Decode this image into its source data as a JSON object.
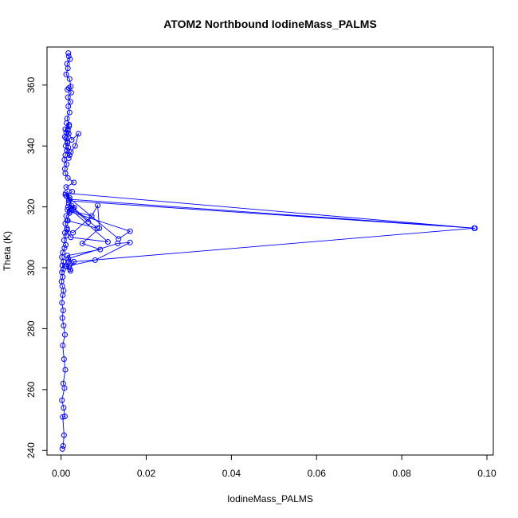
{
  "chart_data": {
    "type": "line",
    "title": "ATOM2 Northbound IodineMass_PALMS",
    "xlabel": "IodineMass_PALMS",
    "ylabel": "Theta (K)",
    "xlim": [
      -0.0033,
      0.1015
    ],
    "ylim": [
      238.5,
      372.5
    ],
    "x_ticks": [
      0.0,
      0.02,
      0.04,
      0.06,
      0.08,
      0.1
    ],
    "x_tick_labels": [
      "0.00",
      "0.02",
      "0.04",
      "0.06",
      "0.08",
      "0.10"
    ],
    "y_ticks": [
      240,
      260,
      280,
      300,
      320,
      340,
      360
    ],
    "y_tick_labels": [
      "240",
      "260",
      "280",
      "300",
      "320",
      "340",
      "360"
    ],
    "grid": false,
    "legend": "none",
    "color": "#0000ff",
    "series": [
      {
        "x": [
          0.0003,
          0.0005,
          0.0007,
          0.0004,
          0.0009,
          0.0006,
          0.0002,
          0.0008,
          0.0005,
          0.001,
          0.0007,
          0.0004,
          0.0009,
          0.0006,
          0.0003,
          0.0005,
          0.0002,
          0.0004,
          0.0006,
          0.0003,
          0.0001,
          0.0004,
          0.0002,
          0.0005,
          0.0003,
          0.0006,
          0.0002,
          0.0004,
          0.0008,
          0.0011,
          0.0007,
          0.0012,
          0.0009,
          0.0014,
          0.001,
          0.0016,
          0.0012,
          0.002,
          0.0028,
          0.0064,
          0.0086,
          0.009,
          0.005,
          0.0092,
          0.0015,
          0.0018,
          0.0011,
          0.0022,
          0.0025,
          0.0017,
          0.0133,
          0.0162,
          0.008,
          0.0013,
          0.0021,
          0.003,
          0.0972,
          0.0019,
          0.001,
          0.0135,
          0.0162,
          0.002,
          0.0016,
          0.011,
          0.0023,
          0.0014,
          0.0028,
          0.0072,
          0.0015,
          0.0031,
          0.0018,
          0.0085,
          0.0014,
          0.0024,
          0.002,
          0.0011,
          0.097,
          0.0018,
          0.0013,
          0.0026,
          0.0012,
          0.003,
          0.0016,
          0.001,
          0.0009,
          0.0013,
          0.0008,
          0.001,
          0.0014,
          0.0011,
          0.0015,
          0.0009,
          0.0012,
          0.001,
          0.0019,
          0.0013,
          0.0016,
          0.0018,
          0.0012,
          0.0015,
          0.0017,
          0.0014,
          0.002,
          0.0018,
          0.0023,
          0.0033,
          0.0041,
          0.0025,
          0.0016,
          0.0019,
          0.0014,
          0.002,
          0.0017,
          0.0022,
          0.0016,
          0.0024,
          0.0018,
          0.0015,
          0.0023,
          0.002,
          0.0012,
          0.0016,
          0.0014,
          0.0021,
          0.0018,
          0.0017
        ],
        "y": [
          240.5,
          241.5,
          245.0,
          251.0,
          251.2,
          254.0,
          256.5,
          260.5,
          262.0,
          266.5,
          270.0,
          274.5,
          278.0,
          281.0,
          283.5,
          286.0,
          288.5,
          291.0,
          292.5,
          294.0,
          295.5,
          297.0,
          298.5,
          299.5,
          300.8,
          302.0,
          303.5,
          305.0,
          306.5,
          307.5,
          309.0,
          310.5,
          311.5,
          313.0,
          314.5,
          315.5,
          317.0,
          318.0,
          319.5,
          315.0,
          320.5,
          313.0,
          308.0,
          306.0,
          304.0,
          302.0,
          300.5,
          299.0,
          301.5,
          303.0,
          308.0,
          308.3,
          302.5,
          300.5,
          299.5,
          302.0,
          313.0,
          322.5,
          324.0,
          309.5,
          312.0,
          318.5,
          320.0,
          308.5,
          310.0,
          312.5,
          311.5,
          317.0,
          319.0,
          319.8,
          321.0,
          313.0,
          315.5,
          320.5,
          323.0,
          324.5,
          313.0,
          322.0,
          323.5,
          325.0,
          326.5,
          328.0,
          329.5,
          331.0,
          332.5,
          334.0,
          335.5,
          337.0,
          338.5,
          340.0,
          341.5,
          343.0,
          344.5,
          345.5,
          346.5,
          347.5,
          345.5,
          344.0,
          342.5,
          341.0,
          339.5,
          338.5,
          337.0,
          336.0,
          338.0,
          340.0,
          344.0,
          342.0,
          345.0,
          347.0,
          349.0,
          351.0,
          353.0,
          354.5,
          356.0,
          357.5,
          359.0,
          358.5,
          359.5,
          362.0,
          363.5,
          365.5,
          367.0,
          368.5,
          369.5,
          370.5
        ]
      }
    ]
  }
}
